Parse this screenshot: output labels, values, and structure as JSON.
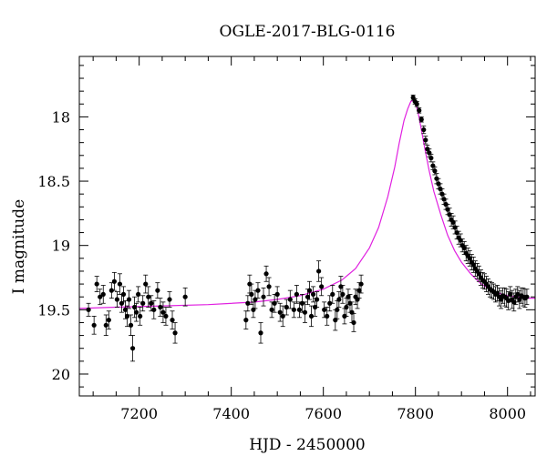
{
  "chart_data": {
    "type": "scatter",
    "title": "OGLE-2017-BLG-0116",
    "xlabel": "HJD - 2450000",
    "ylabel": "I magnitude",
    "xlim": [
      7070,
      8060
    ],
    "ylim": [
      20.17,
      17.53
    ],
    "y_inverted": true,
    "x_ticks": [
      7200,
      7400,
      7600,
      7800,
      8000
    ],
    "y_ticks": [
      18,
      18.5,
      19,
      19.5,
      20
    ],
    "x_tick_labels": [
      "7200",
      "7400",
      "7600",
      "7800",
      "8000"
    ],
    "y_tick_labels": [
      "18",
      "18.5",
      "19",
      "19.5",
      "20"
    ],
    "grid": false,
    "colors": {
      "points": "#000000",
      "model": "#e020e0"
    },
    "series": [
      {
        "kind": "points",
        "x": [
          7090,
          7102,
          7108,
          7115,
          7122,
          7128,
          7134,
          7140,
          7146,
          7152,
          7158,
          7162,
          7166,
          7170,
          7174,
          7178,
          7182,
          7186,
          7190,
          7194,
          7198,
          7202,
          7208,
          7214,
          7220,
          7226,
          7232,
          7240,
          7246,
          7252,
          7258,
          7266,
          7272,
          7278,
          7300,
          7432,
          7436,
          7440,
          7444,
          7448,
          7452,
          7458,
          7464,
          7470,
          7476,
          7482,
          7488,
          7494,
          7500,
          7506,
          7512,
          7520,
          7528,
          7536,
          7542,
          7548,
          7554,
          7560,
          7566,
          7570,
          7574,
          7578,
          7582,
          7586,
          7590,
          7596,
          7602,
          7608,
          7614,
          7620,
          7626,
          7630,
          7634,
          7638,
          7642,
          7646,
          7650,
          7654,
          7658,
          7662,
          7666,
          7670,
          7674,
          7678,
          7682,
          7795,
          7799,
          7803,
          7808,
          7813,
          7818,
          7822,
          7826,
          7830,
          7834,
          7838,
          7842,
          7846,
          7850,
          7854,
          7858,
          7862,
          7866,
          7870,
          7874,
          7878,
          7882,
          7886,
          7890,
          7894,
          7898,
          7902,
          7906,
          7910,
          7914,
          7918,
          7922,
          7926,
          7930,
          7934,
          7938,
          7942,
          7946,
          7950,
          7954,
          7958,
          7962,
          7966,
          7970,
          7974,
          7978,
          7982,
          7986,
          7990,
          7994,
          7998,
          8002,
          8006,
          8010,
          8014,
          8018,
          8022,
          8026,
          8030,
          8034,
          8038,
          8042
        ],
        "y": [
          19.5,
          19.62,
          19.3,
          19.4,
          19.38,
          19.62,
          19.58,
          19.35,
          19.28,
          19.42,
          19.3,
          19.45,
          19.38,
          19.5,
          19.55,
          19.42,
          19.62,
          19.8,
          19.48,
          19.52,
          19.38,
          19.55,
          19.45,
          19.3,
          19.4,
          19.45,
          19.5,
          19.35,
          19.48,
          19.52,
          19.55,
          19.42,
          19.58,
          19.68,
          19.4,
          19.58,
          19.45,
          19.3,
          19.38,
          19.5,
          19.42,
          19.35,
          19.68,
          19.4,
          19.22,
          19.32,
          19.5,
          19.45,
          19.38,
          19.52,
          19.55,
          19.48,
          19.42,
          19.5,
          19.38,
          19.5,
          19.45,
          19.52,
          19.4,
          19.35,
          19.55,
          19.38,
          19.48,
          19.42,
          19.2,
          19.32,
          19.5,
          19.55,
          19.45,
          19.38,
          19.58,
          19.5,
          19.42,
          19.32,
          19.38,
          19.55,
          19.48,
          19.4,
          19.45,
          19.52,
          19.6,
          19.4,
          19.42,
          19.35,
          19.3,
          17.85,
          17.88,
          17.9,
          17.95,
          18.02,
          18.1,
          18.18,
          18.25,
          18.28,
          18.32,
          18.38,
          18.42,
          18.48,
          18.52,
          18.56,
          18.6,
          18.64,
          18.68,
          18.72,
          18.76,
          18.8,
          18.82,
          18.86,
          18.9,
          18.94,
          18.96,
          19.0,
          19.02,
          19.06,
          19.08,
          19.1,
          19.13,
          19.15,
          19.18,
          19.2,
          19.22,
          19.25,
          19.27,
          19.28,
          19.3,
          19.32,
          19.34,
          19.35,
          19.36,
          19.38,
          19.37,
          19.4,
          19.42,
          19.39,
          19.4,
          19.41,
          19.43,
          19.38,
          19.42,
          19.44,
          19.4,
          19.38,
          19.42,
          19.39,
          19.4,
          19.41,
          19.4
        ],
        "yerr": [
          0.05,
          0.07,
          0.06,
          0.06,
          0.07,
          0.08,
          0.07,
          0.06,
          0.07,
          0.06,
          0.08,
          0.07,
          0.06,
          0.07,
          0.08,
          0.07,
          0.08,
          0.1,
          0.08,
          0.07,
          0.06,
          0.07,
          0.06,
          0.07,
          0.08,
          0.06,
          0.07,
          0.06,
          0.07,
          0.08,
          0.07,
          0.06,
          0.07,
          0.08,
          0.07,
          0.07,
          0.06,
          0.07,
          0.08,
          0.06,
          0.07,
          0.06,
          0.08,
          0.07,
          0.06,
          0.07,
          0.06,
          0.07,
          0.06,
          0.07,
          0.08,
          0.06,
          0.07,
          0.06,
          0.07,
          0.06,
          0.07,
          0.08,
          0.06,
          0.07,
          0.08,
          0.06,
          0.07,
          0.06,
          0.08,
          0.07,
          0.06,
          0.07,
          0.06,
          0.07,
          0.08,
          0.07,
          0.06,
          0.08,
          0.07,
          0.06,
          0.07,
          0.06,
          0.07,
          0.08,
          0.07,
          0.06,
          0.07,
          0.06,
          0.07,
          0.02,
          0.02,
          0.02,
          0.02,
          0.02,
          0.03,
          0.03,
          0.03,
          0.03,
          0.03,
          0.03,
          0.03,
          0.04,
          0.04,
          0.04,
          0.04,
          0.04,
          0.04,
          0.04,
          0.05,
          0.05,
          0.05,
          0.05,
          0.05,
          0.05,
          0.05,
          0.05,
          0.05,
          0.06,
          0.06,
          0.06,
          0.06,
          0.06,
          0.06,
          0.06,
          0.06,
          0.06,
          0.06,
          0.06,
          0.06,
          0.06,
          0.06,
          0.06,
          0.06,
          0.06,
          0.06,
          0.07,
          0.07,
          0.06,
          0.07,
          0.07,
          0.07,
          0.06,
          0.07,
          0.07,
          0.06,
          0.06,
          0.07,
          0.06,
          0.07,
          0.07,
          0.06
        ]
      },
      {
        "kind": "model",
        "x": [
          7070,
          7150,
          7250,
          7350,
          7450,
          7500,
          7550,
          7600,
          7640,
          7670,
          7700,
          7720,
          7740,
          7755,
          7765,
          7775,
          7783,
          7790,
          7796,
          7800,
          7806,
          7812,
          7820,
          7830,
          7840,
          7855,
          7870,
          7885,
          7900,
          7920,
          7940,
          7960,
          7980,
          8000,
          8020,
          8040,
          8060
        ],
        "y": [
          19.49,
          19.48,
          19.47,
          19.46,
          19.44,
          19.42,
          19.39,
          19.34,
          19.27,
          19.18,
          19.02,
          18.86,
          18.62,
          18.39,
          18.2,
          18.03,
          17.94,
          17.88,
          17.87,
          17.89,
          17.97,
          18.08,
          18.24,
          18.42,
          18.58,
          18.76,
          18.92,
          19.04,
          19.13,
          19.22,
          19.29,
          19.34,
          19.37,
          19.39,
          19.4,
          19.41,
          19.41
        ]
      }
    ]
  }
}
